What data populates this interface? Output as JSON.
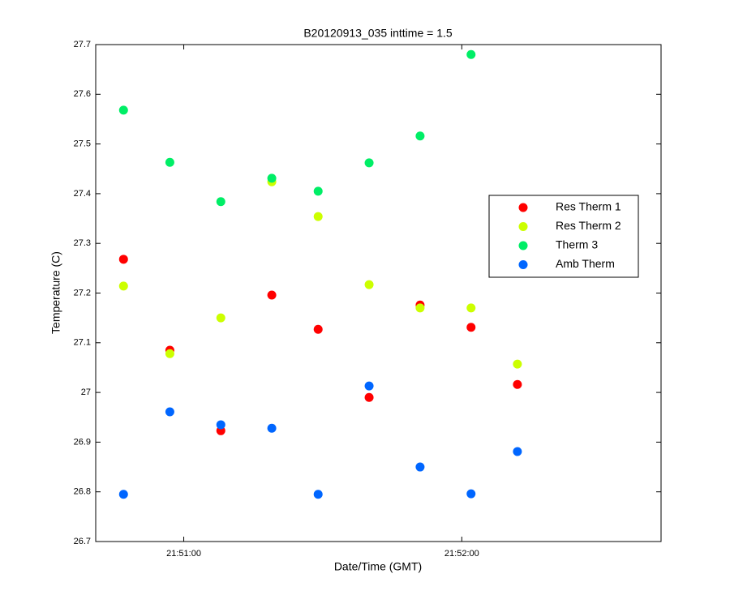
{
  "chart_data": {
    "type": "scatter",
    "title": "B20120913_035 inttime = 1.5",
    "xlabel": "Date/Time (GMT)",
    "ylabel": "Temperature (C)",
    "x": [
      "21:50:47",
      "21:50:57",
      "21:51:08",
      "21:51:19",
      "21:51:29",
      "21:51:40",
      "21:51:51",
      "21:52:02",
      "21:52:12"
    ],
    "series": [
      {
        "name": "Res Therm 1",
        "color": "#ff0000",
        "values": [
          27.268,
          27.085,
          26.923,
          27.196,
          27.127,
          26.99,
          27.176,
          27.131,
          27.016
        ]
      },
      {
        "name": "Res Therm 2",
        "color": "#ccff00",
        "values": [
          27.214,
          27.078,
          27.15,
          27.424,
          27.354,
          27.217,
          27.17,
          27.17,
          27.057
        ]
      },
      {
        "name": "Therm 3",
        "color": "#00ee66",
        "values": [
          27.568,
          27.463,
          27.384,
          27.431,
          27.405,
          27.462,
          27.516,
          27.68,
          null
        ]
      },
      {
        "name": "Amb Therm",
        "color": "#0066ff",
        "values": [
          26.795,
          26.961,
          26.935,
          26.928,
          26.795,
          27.013,
          26.85,
          26.796,
          26.881
        ]
      }
    ],
    "xlim": [
      "21:50:41",
      "21:52:43"
    ],
    "xticks": [
      "21:51:00",
      "21:52:00"
    ],
    "ylim": [
      26.7,
      27.7
    ],
    "yticks": [
      26.7,
      26.8,
      26.9,
      27,
      27.1,
      27.2,
      27.3,
      27.4,
      27.5,
      27.6,
      27.7
    ],
    "legend": "east",
    "grid": false
  }
}
